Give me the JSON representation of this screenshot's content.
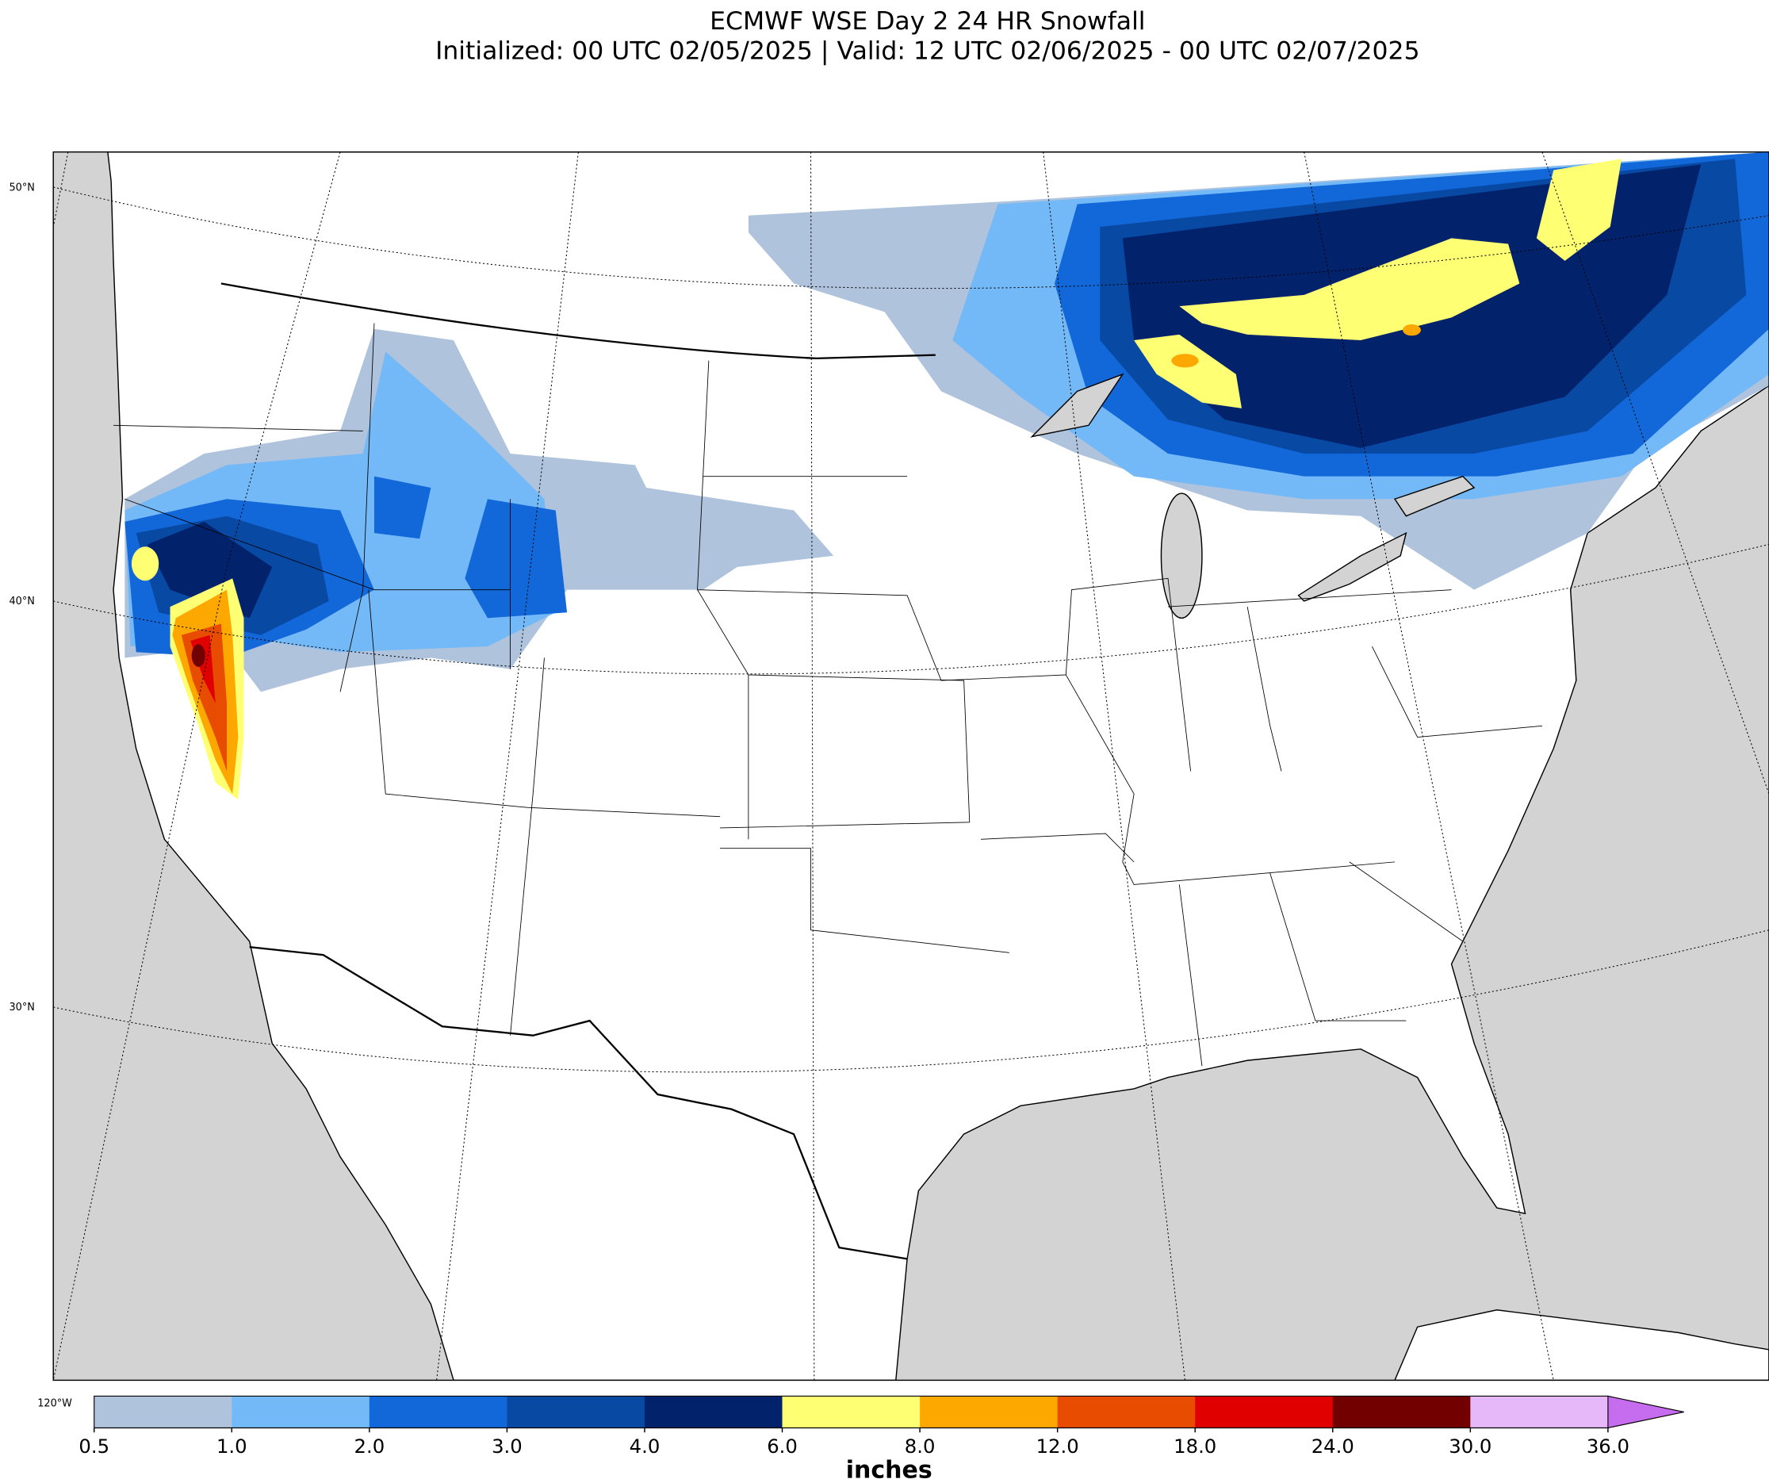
{
  "header": {
    "title": "ECMWF WSE Day 2 24 HR Snowfall",
    "subtitle": "Initialized: 00 UTC 02/05/2025 | Valid: 12 UTC 02/06/2025 - 00 UTC 02/07/2025"
  },
  "map": {
    "lat_labels": [
      "50°N",
      "40°N",
      "30°N"
    ],
    "lon_labels": [
      "120°W"
    ],
    "land_color": "#ffffff",
    "water_color": "#d3d3d3"
  },
  "colorbar": {
    "ticks": [
      {
        "value": 0.5,
        "label": "0.5"
      },
      {
        "value": 1,
        "label": "1.0"
      },
      {
        "value": 2,
        "label": "2.0"
      },
      {
        "value": 3,
        "label": "3.0"
      },
      {
        "value": 4,
        "label": "4.0"
      },
      {
        "value": 6,
        "label": "6.0"
      },
      {
        "value": 8,
        "label": "8.0"
      },
      {
        "value": 12,
        "label": "12.0"
      },
      {
        "value": 18,
        "label": "18.0"
      },
      {
        "value": 24,
        "label": "24.0"
      },
      {
        "value": 30,
        "label": "30.0"
      },
      {
        "value": 36,
        "label": "36.0"
      }
    ],
    "colors": [
      "#afc3dc",
      "#74b9f7",
      "#1368d9",
      "#0849a3",
      "#02236c",
      "#ffff73",
      "#fda800",
      "#e84c00",
      "#e00000",
      "#730000",
      "#e6b8fa"
    ],
    "extend_color": "#c66cef",
    "unit": "inches"
  }
}
